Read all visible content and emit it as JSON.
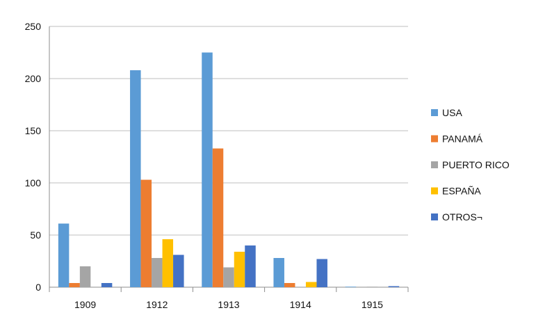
{
  "chart_data": {
    "type": "bar",
    "title": "",
    "xlabel": "",
    "ylabel": "",
    "categories": [
      "1909",
      "1912",
      "1913",
      "1914",
      "1915"
    ],
    "ylim": [
      0,
      250
    ],
    "yticks": [
      0,
      50,
      100,
      150,
      200,
      250
    ],
    "grid": true,
    "legend_position": "right",
    "series": [
      {
        "name": "USA",
        "color": "#5b9bd5",
        "values": [
          61,
          208,
          225,
          28,
          0.5
        ]
      },
      {
        "name": "PANAMÁ",
        "color": "#ed7d31",
        "values": [
          4,
          103,
          133,
          4,
          0
        ]
      },
      {
        "name": "PUERTO RICO",
        "color": "#a5a5a5",
        "values": [
          20,
          28,
          19,
          0,
          0.5
        ]
      },
      {
        "name": "ESPAÑA",
        "color": "#ffc000",
        "values": [
          0,
          46,
          34,
          5,
          0
        ]
      },
      {
        "name": "OTROS¬",
        "color": "#4472c4",
        "values": [
          4,
          31,
          40,
          27,
          1
        ]
      }
    ]
  }
}
